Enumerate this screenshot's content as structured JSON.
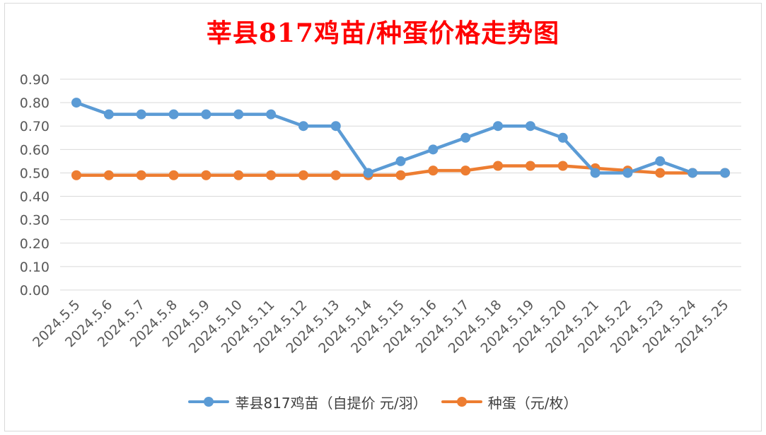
{
  "chart_data": {
    "type": "line",
    "title": "莘县817鸡苗/种蛋价格走势图",
    "categories": [
      "2024.5.5",
      "2024.5.6",
      "2024.5.7",
      "2024.5.8",
      "2024.5.9",
      "2024.5.10",
      "2024.5.11",
      "2024.5.12",
      "2024.5.13",
      "2024.5.14",
      "2024.5.15",
      "2024.5.16",
      "2024.5.17",
      "2024.5.18",
      "2024.5.19",
      "2024.5.20",
      "2024.5.21",
      "2024.5.22",
      "2024.5.23",
      "2024.5.24",
      "2024.5.25"
    ],
    "y_ticks": [
      "0.00",
      "0.10",
      "0.20",
      "0.30",
      "0.40",
      "0.50",
      "0.60",
      "0.70",
      "0.80",
      "0.90"
    ],
    "ylim": [
      0,
      0.9
    ],
    "grid": true,
    "legend_position": "bottom",
    "series": [
      {
        "name": "莘县817鸡苗（自提价 元/羽）",
        "color": "#5b9bd5",
        "values": [
          0.8,
          0.75,
          0.75,
          0.75,
          0.75,
          0.75,
          0.75,
          0.7,
          0.7,
          0.5,
          0.55,
          0.6,
          0.65,
          0.7,
          0.7,
          0.65,
          0.5,
          0.5,
          0.55,
          0.5,
          0.5
        ]
      },
      {
        "name": "种蛋（元/枚）",
        "color": "#ed7d31",
        "values": [
          0.49,
          0.49,
          0.49,
          0.49,
          0.49,
          0.49,
          0.49,
          0.49,
          0.49,
          0.49,
          0.49,
          0.51,
          0.51,
          0.53,
          0.53,
          0.53,
          0.52,
          0.51,
          0.5,
          0.5,
          0.5
        ]
      }
    ]
  }
}
